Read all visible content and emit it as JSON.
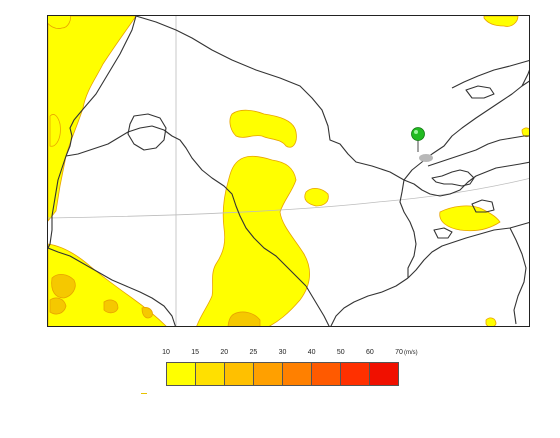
{
  "map": {
    "region": "Central Asia",
    "fill_colors": {
      "light": "#ffff00",
      "medium": "#f5c800",
      "edge": "#e8a300"
    },
    "marker": {
      "icon": "green-pin-icon",
      "color": "#22bb22"
    }
  },
  "legend": {
    "labels": [
      "10",
      "15",
      "20",
      "25",
      "30",
      "40",
      "50",
      "60",
      "70"
    ],
    "unit": "(m/s)",
    "colors": [
      "#ffff00",
      "#ffe000",
      "#ffc000",
      "#ffa000",
      "#ff8000",
      "#ff5a00",
      "#ff3000",
      "#f01000"
    ]
  }
}
